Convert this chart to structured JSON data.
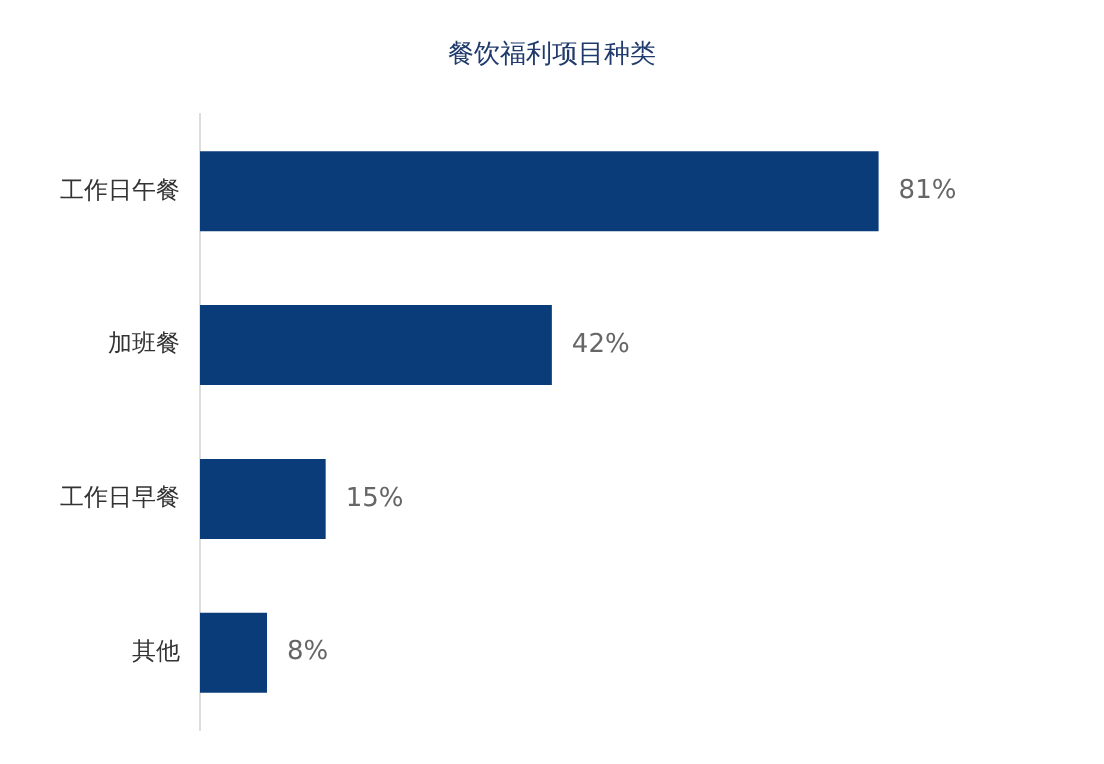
{
  "chart_data": {
    "type": "bar",
    "orientation": "horizontal",
    "title": "餐饮福利项目种类",
    "categories": [
      "工作日午餐",
      "加班餐",
      "工作日早餐",
      "其他"
    ],
    "values": [
      81,
      42,
      15,
      8
    ],
    "value_labels": [
      "81%",
      "42%",
      "15%",
      "8%"
    ],
    "color": "#0b3c7a"
  }
}
